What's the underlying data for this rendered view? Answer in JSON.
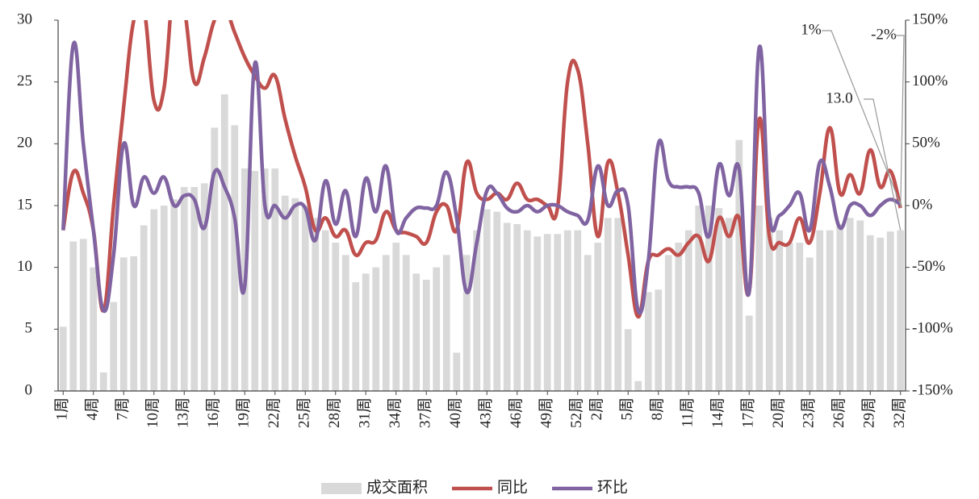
{
  "chart_data": {
    "type": "bar-line",
    "categories": [
      "1周",
      null,
      null,
      "4周",
      null,
      null,
      "7周",
      null,
      null,
      "10周",
      null,
      null,
      "13周",
      null,
      null,
      "16周",
      null,
      null,
      "19周",
      null,
      null,
      "22周",
      null,
      null,
      "25周",
      null,
      null,
      "28周",
      null,
      null,
      "31周",
      null,
      null,
      "34周",
      null,
      null,
      "37周",
      null,
      null,
      "40周",
      null,
      null,
      "43周",
      null,
      null,
      "46周",
      null,
      null,
      "49周",
      null,
      null,
      "52周",
      null,
      "2周",
      null,
      null,
      "5周",
      null,
      null,
      "8周",
      null,
      null,
      "11周",
      null,
      null,
      "14周",
      null,
      null,
      "17周",
      null,
      null,
      "20周",
      null,
      null,
      "23周",
      null,
      null,
      "26周",
      null,
      null,
      "29周",
      null,
      null,
      "32周"
    ],
    "series": [
      {
        "name": "成交面积",
        "type": "bar",
        "color": "#d9d9d9",
        "values": [
          5.2,
          12.1,
          12.3,
          10,
          1.5,
          7.2,
          10.8,
          10.9,
          13.4,
          14.7,
          15,
          15.5,
          16.5,
          16.5,
          16.8,
          21.3,
          24,
          21.5,
          18,
          17.8,
          18,
          18,
          15.8,
          15.6,
          15,
          14,
          13,
          12,
          11,
          8.8,
          9.5,
          10,
          11,
          12,
          11,
          9.5,
          9,
          10,
          11,
          3.1,
          11,
          13,
          14.7,
          14.5,
          13.6,
          13.5,
          13,
          12.5,
          12.7,
          12.7,
          13,
          13,
          11,
          12,
          14,
          14,
          5,
          0.8,
          8,
          8.2,
          11,
          12,
          13,
          15,
          15,
          14.8,
          14,
          20.3,
          6.1,
          15,
          14,
          13,
          12,
          12,
          10.8,
          13,
          13,
          13.5,
          14,
          13.8,
          12.6,
          12.4,
          12.9,
          13.0
        ]
      },
      {
        "name": "同比",
        "type": "line",
        "axis": "y2",
        "color": "#c0504d",
        "values": [
          -20,
          27,
          10,
          -20,
          -85,
          0,
          80,
          150,
          160,
          85,
          95,
          180,
          160,
          100,
          120,
          150,
          160,
          140,
          120,
          105,
          95,
          105,
          70,
          40,
          15,
          -20,
          -10,
          -25,
          -20,
          -40,
          -30,
          -28,
          -5,
          -20,
          -22,
          -25,
          -30,
          -5,
          0,
          -20,
          35,
          10,
          5,
          10,
          5,
          18,
          5,
          5,
          0,
          -2,
          100,
          110,
          50,
          -25,
          35,
          10,
          -40,
          -90,
          -45,
          -40,
          -35,
          -40,
          -30,
          -25,
          -45,
          -10,
          -25,
          -10,
          -70,
          70,
          -25,
          -30,
          -30,
          -10,
          -30,
          10,
          63,
          10,
          25,
          10,
          45,
          15,
          28,
          -2
        ]
      },
      {
        "name": "环比",
        "type": "line",
        "axis": "y2",
        "color": "#8064a2",
        "values": [
          -20,
          130,
          50,
          -20,
          -85,
          -40,
          50,
          0,
          23,
          10,
          23,
          0,
          8,
          5,
          -18,
          27,
          15,
          -10,
          -65,
          115,
          0,
          0,
          -10,
          0,
          -2,
          -28,
          20,
          -15,
          12,
          -25,
          22,
          -5,
          32,
          -20,
          -10,
          -2,
          -2,
          0,
          27,
          -10,
          -70,
          -30,
          12,
          10,
          -2,
          -5,
          0,
          -5,
          0,
          0,
          -5,
          -8,
          -12,
          32,
          0,
          12,
          0,
          -85,
          -45,
          50,
          20,
          15,
          15,
          10,
          -25,
          33,
          8,
          30,
          -70,
          128,
          -8,
          -8,
          0,
          10,
          -20,
          35,
          15,
          -18,
          0,
          0,
          -8,
          0,
          5,
          1
        ]
      }
    ],
    "ylim": [
      0,
      30
    ],
    "yticks": [
      0,
      5,
      10,
      15,
      20,
      25,
      30
    ],
    "y2lim": [
      -150,
      150
    ],
    "y2ticks": [
      {
        "value": -150,
        "label": "-150%"
      },
      {
        "value": -100,
        "label": "-100%"
      },
      {
        "value": -50,
        "label": "-50%"
      },
      {
        "value": 0,
        "label": "0%"
      },
      {
        "value": 50,
        "label": "50%"
      },
      {
        "value": 100,
        "label": "100%"
      },
      {
        "value": 150,
        "label": "150%"
      }
    ],
    "annotations": [
      "1%",
      "-2%",
      "13.0"
    ],
    "legend": "bottom"
  }
}
